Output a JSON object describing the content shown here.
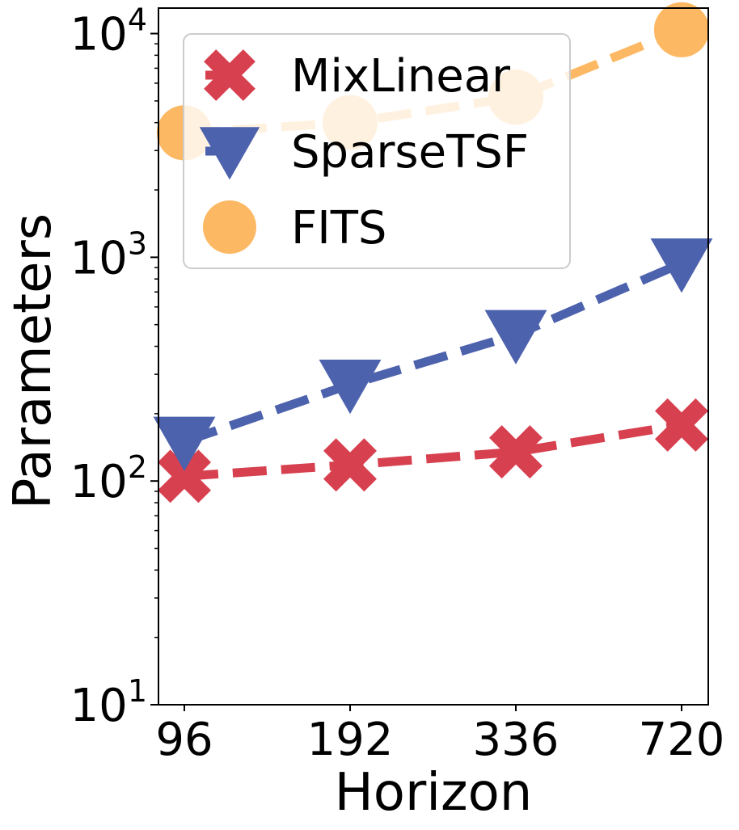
{
  "chart_data": {
    "type": "line",
    "x_scale": "categorical",
    "y_scale": "log",
    "categories": [
      "96",
      "192",
      "336",
      "720"
    ],
    "xlabel": "Horizon",
    "ylabel": "Parameters",
    "ylim": [
      10,
      13000
    ],
    "yticks": [
      {
        "value": 10,
        "base": "10",
        "exp": "1"
      },
      {
        "value": 100,
        "base": "10",
        "exp": "2"
      },
      {
        "value": 1000,
        "base": "10",
        "exp": "3"
      },
      {
        "value": 10000,
        "base": "10",
        "exp": "4"
      }
    ],
    "grid": false,
    "legend_position": "top-left",
    "series": [
      {
        "name": "MixLinear",
        "values": [
          105,
          118,
          135,
          178
        ],
        "color": "#d7404f",
        "marker": "x-icon"
      },
      {
        "name": "SparseTSF",
        "values": [
          150,
          270,
          450,
          940
        ],
        "color": "#4c62ad",
        "marker": "triangle-down-icon"
      },
      {
        "name": "FITS",
        "values": [
          3600,
          4000,
          5200,
          10400
        ],
        "color": "#fdb863",
        "marker": "circle-icon"
      }
    ]
  }
}
